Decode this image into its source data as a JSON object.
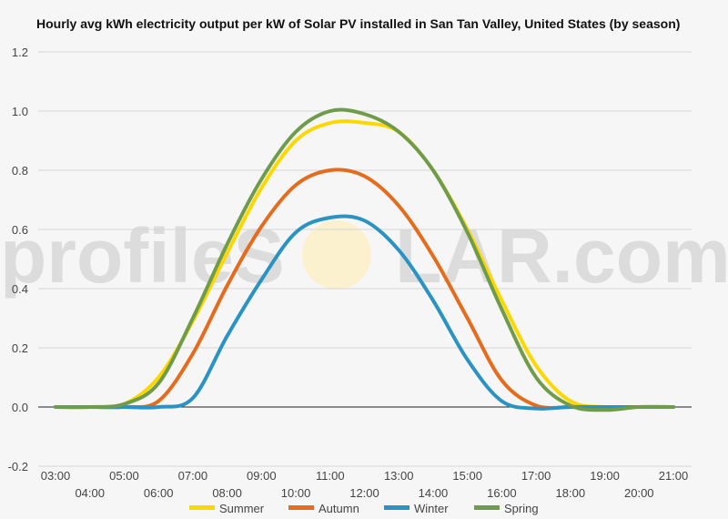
{
  "chart_data": {
    "type": "line",
    "title": "Hourly avg kWh electricity output per kW of Solar PV installed in San Tan Valley, United States (by season)",
    "xlabel": "",
    "ylabel": "",
    "ylim": [
      -0.2,
      1.2
    ],
    "y_ticks": [
      "-0.2",
      "0.0",
      "0.2",
      "0.4",
      "0.6",
      "0.8",
      "1.0",
      "1.2"
    ],
    "y_tick_values": [
      -0.2,
      0.0,
      0.2,
      0.4,
      0.6,
      0.8,
      1.0,
      1.2
    ],
    "x_ticks": [
      "03:00",
      "04:00",
      "05:00",
      "06:00",
      "07:00",
      "08:00",
      "09:00",
      "10:00",
      "11:00",
      "12:00",
      "13:00",
      "14:00",
      "15:00",
      "16:00",
      "17:00",
      "18:00",
      "19:00",
      "20:00",
      "21:00"
    ],
    "x": [
      3,
      4,
      5,
      6,
      7,
      8,
      9,
      10,
      11,
      12,
      13,
      14,
      15,
      16,
      17,
      18,
      19,
      20,
      21
    ],
    "grid": true,
    "legend_position": "bottom",
    "series": [
      {
        "name": "Summer",
        "color": "#ffd700",
        "values": [
          0,
          0,
          0.01,
          0.1,
          0.29,
          0.52,
          0.74,
          0.9,
          0.96,
          0.96,
          0.93,
          0.8,
          0.6,
          0.36,
          0.14,
          0.02,
          0,
          0,
          0
        ]
      },
      {
        "name": "Autumn",
        "color": "#e46c1c",
        "values": [
          0,
          0,
          0,
          0.02,
          0.18,
          0.41,
          0.61,
          0.75,
          0.8,
          0.78,
          0.68,
          0.51,
          0.3,
          0.09,
          0.005,
          0,
          0,
          0,
          0
        ]
      },
      {
        "name": "Winter",
        "color": "#2a93c4",
        "values": [
          0,
          0,
          0,
          0,
          0.03,
          0.24,
          0.43,
          0.59,
          0.64,
          0.63,
          0.53,
          0.36,
          0.16,
          0.02,
          -0.005,
          0,
          0,
          0,
          0
        ]
      },
      {
        "name": "Spring",
        "color": "#6f9c4b",
        "values": [
          0,
          0,
          0.01,
          0.08,
          0.3,
          0.55,
          0.77,
          0.93,
          1.0,
          0.99,
          0.93,
          0.8,
          0.59,
          0.33,
          0.1,
          0.005,
          -0.01,
          0,
          0
        ]
      }
    ]
  },
  "watermark": {
    "left": "profileS",
    "middle": "O",
    "right": "LAR.com"
  }
}
